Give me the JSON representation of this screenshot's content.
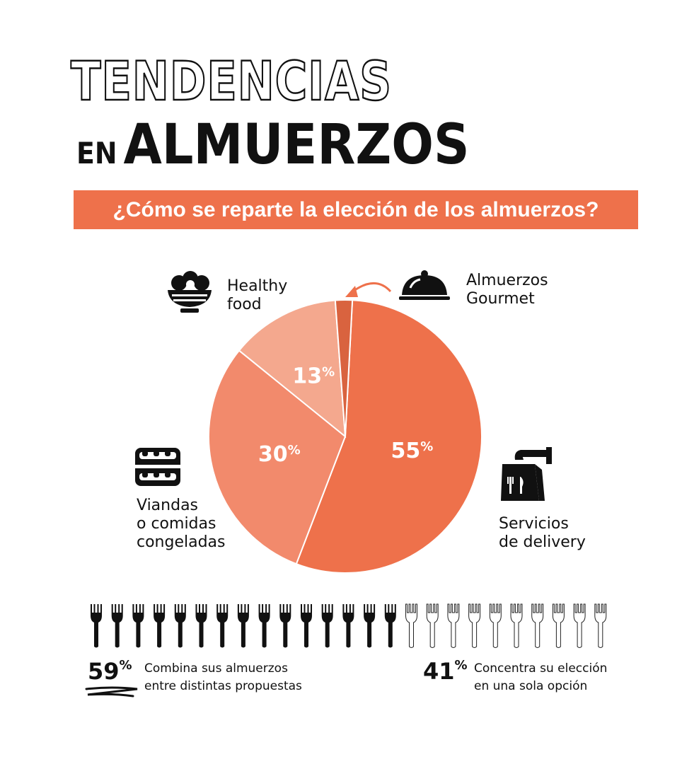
{
  "title": {
    "line1": "TENDENCIAS",
    "line2_small": "EN",
    "line2_big": "ALMUERZOS"
  },
  "banner": "¿Cómo se reparte la elección de los almuerzos?",
  "colors": {
    "accent": "#ee714b",
    "slice_delivery": "#ee714b",
    "slice_viandas": "#f28a6c",
    "slice_healthy": "#f4a88e",
    "slice_gourmet": "#d9633f"
  },
  "chart_data": {
    "type": "pie",
    "slices": [
      {
        "name": "Servicios de delivery",
        "value": 55,
        "label": "55%",
        "color": "#ee714b"
      },
      {
        "name": "Viandas o comidas congeladas",
        "value": 30,
        "label": "30%",
        "color": "#f28a6c"
      },
      {
        "name": "Healthy food",
        "value": 13,
        "label": "13%",
        "color": "#f4a88e"
      },
      {
        "name": "Almuerzos Gourmet",
        "value": 2,
        "label": "",
        "color": "#d9633f"
      }
    ]
  },
  "labels": {
    "healthy": "Healthy\nfood",
    "gourmet": "Almuerzos\nGourmet",
    "viandas": "Viandas\no comidas\ncongeladas",
    "delivery": "Servicios\nde delivery"
  },
  "icons": {
    "healthy": "salad-bowl-icon",
    "gourmet": "cloche-icon",
    "viandas": "food-container-icon",
    "delivery": "delivery-bag-icon",
    "fork": "fork-icon"
  },
  "forks": {
    "filled": 15,
    "outline": 10
  },
  "stats": {
    "combine": {
      "value": "59%",
      "text": "Combina sus almuerzos\nentre distintas propuestas"
    },
    "single": {
      "value": "41%",
      "text": "Concentra su elección\nen una sola opción"
    }
  }
}
